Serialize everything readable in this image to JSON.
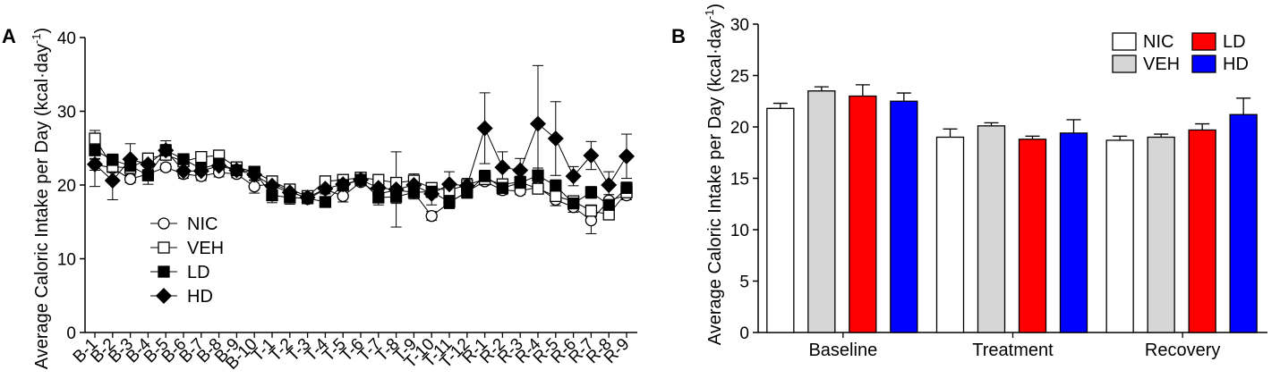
{
  "chart_data": [
    {
      "panel_label": "A",
      "type": "line",
      "ylabel": "Average Caloric Intake per Day (kcal·day",
      "ylabel_sup": "-1",
      "ylabel_close": ")",
      "ylim": [
        0,
        40
      ],
      "yticks": [
        0,
        10,
        20,
        30,
        40
      ],
      "legend_position": "bottom-left",
      "categories": [
        "B-1",
        "B-2",
        "B-3",
        "B-4",
        "B-5",
        "B-6",
        "B-7",
        "B-8",
        "B-9",
        "B-10",
        "T-1",
        "T-2",
        "T-3",
        "T-4",
        "T-5",
        "T-6",
        "T-7",
        "T-8",
        "T-9",
        "T-10",
        "T-11",
        "T-12",
        "R-1",
        "R-2",
        "R-3",
        "R-4",
        "R-5",
        "R-6",
        "R-7",
        "R-8",
        "R-9"
      ],
      "series": [
        {
          "name": "NIC",
          "marker": "circle-open",
          "values": [
            22.8,
            22.3,
            20.8,
            21.5,
            22.4,
            21.5,
            21.2,
            21.7,
            21.5,
            19.8,
            20.2,
            19.2,
            18.1,
            19.4,
            18.5,
            20.4,
            18.8,
            19.3,
            19.0,
            15.8,
            17.6,
            19.1,
            20.5,
            19.3,
            19.2,
            19.7,
            18.0,
            17.0,
            15.2,
            17.9,
            18.6
          ],
          "errors": [
            0.8,
            0.6,
            0.5,
            0.6,
            0.5,
            0.4,
            0.6,
            0.6,
            0.5,
            0.9,
            0.6,
            0.5,
            0.5,
            0.6,
            0.8,
            0.5,
            0.6,
            0.8,
            0.7,
            0.6,
            0.8,
            0.6,
            0.5,
            0.6,
            0.5,
            0.7,
            0.8,
            0.7,
            1.8,
            0.8,
            0.6
          ]
        },
        {
          "name": "VEH",
          "marker": "square-open",
          "values": [
            26.3,
            22.5,
            22.3,
            23.6,
            24.1,
            23.2,
            23.8,
            24.0,
            22.4,
            21.8,
            20.5,
            19.4,
            18.5,
            20.5,
            20.7,
            21.0,
            20.7,
            20.3,
            20.6,
            19.6,
            19.3,
            20.0,
            20.8,
            20.1,
            20.4,
            19.5,
            18.5,
            17.8,
            16.5,
            16.0,
            19.0
          ],
          "errors": [
            1.1,
            0.8,
            0.7,
            0.6,
            0.6,
            0.6,
            0.6,
            0.6,
            0.6,
            0.6,
            0.6,
            0.5,
            0.5,
            0.6,
            0.5,
            0.6,
            0.6,
            0.6,
            0.6,
            0.6,
            0.6,
            0.6,
            0.6,
            0.6,
            0.6,
            0.6,
            0.6,
            0.6,
            0.8,
            0.7,
            0.6
          ]
        },
        {
          "name": "LD",
          "marker": "square-filled",
          "values": [
            24.7,
            23.4,
            22.6,
            21.3,
            24.7,
            23.5,
            22.2,
            22.9,
            22.0,
            21.8,
            18.6,
            18.3,
            18.2,
            17.7,
            20.0,
            20.7,
            18.3,
            18.4,
            19.0,
            19.1,
            17.7,
            19.0,
            21.2,
            19.6,
            20.3,
            21.3,
            19.9,
            17.5,
            19.0,
            17.3,
            19.6
          ],
          "errors": [
            1.2,
            0.8,
            0.8,
            1.2,
            0.8,
            0.7,
            0.9,
            0.9,
            0.7,
            0.7,
            1.0,
            0.9,
            0.7,
            0.6,
            0.8,
            0.7,
            1.0,
            0.9,
            0.9,
            0.8,
            0.8,
            0.8,
            0.8,
            0.8,
            0.9,
            1.0,
            0.8,
            0.8,
            0.8,
            0.9,
            0.8
          ]
        },
        {
          "name": "HD",
          "marker": "diamond-filled",
          "values": [
            22.8,
            20.6,
            23.5,
            22.8,
            24.7,
            21.9,
            21.9,
            22.6,
            22.0,
            21.4,
            19.9,
            19.0,
            18.3,
            19.5,
            20.1,
            20.7,
            19.6,
            19.4,
            20.0,
            18.8,
            20.1,
            19.9,
            27.7,
            22.4,
            22.0,
            28.3,
            26.3,
            21.2,
            24.0,
            20.0,
            23.9
          ],
          "errors": [
            3.0,
            2.6,
            2.1,
            1.3,
            1.3,
            1.0,
            1.1,
            1.1,
            1.0,
            0.8,
            0.9,
            0.8,
            0.8,
            0.7,
            0.8,
            0.8,
            0.9,
            5.1,
            1.5,
            1.5,
            1.7,
            1.0,
            4.8,
            2.1,
            1.6,
            7.9,
            5.0,
            1.3,
            1.9,
            1.8,
            3.0
          ]
        }
      ]
    },
    {
      "panel_label": "B",
      "type": "bar",
      "ylabel": "Average Caloric Intake per Day (kcal·day",
      "ylabel_sup": "-1",
      "ylabel_close": ")",
      "ylim": [
        0,
        30
      ],
      "yticks": [
        0,
        5,
        10,
        15,
        20,
        25,
        30
      ],
      "legend_position": "top-right",
      "categories": [
        "Baseline",
        "Treatment",
        "Recovery"
      ],
      "series": [
        {
          "name": "NIC",
          "color": "#ffffff",
          "values": [
            21.8,
            19.0,
            18.7
          ],
          "errors": [
            0.5,
            0.8,
            0.4
          ]
        },
        {
          "name": "VEH",
          "color": "#d6d6d6",
          "values": [
            23.5,
            20.1,
            19.0
          ],
          "errors": [
            0.4,
            0.3,
            0.3
          ]
        },
        {
          "name": "LD",
          "color": "#ff0000",
          "values": [
            23.0,
            18.8,
            19.7
          ],
          "errors": [
            1.1,
            0.3,
            0.6
          ]
        },
        {
          "name": "HD",
          "color": "#0000ff",
          "values": [
            22.5,
            19.4,
            21.2
          ],
          "errors": [
            0.8,
            1.3,
            1.6
          ]
        }
      ]
    }
  ]
}
